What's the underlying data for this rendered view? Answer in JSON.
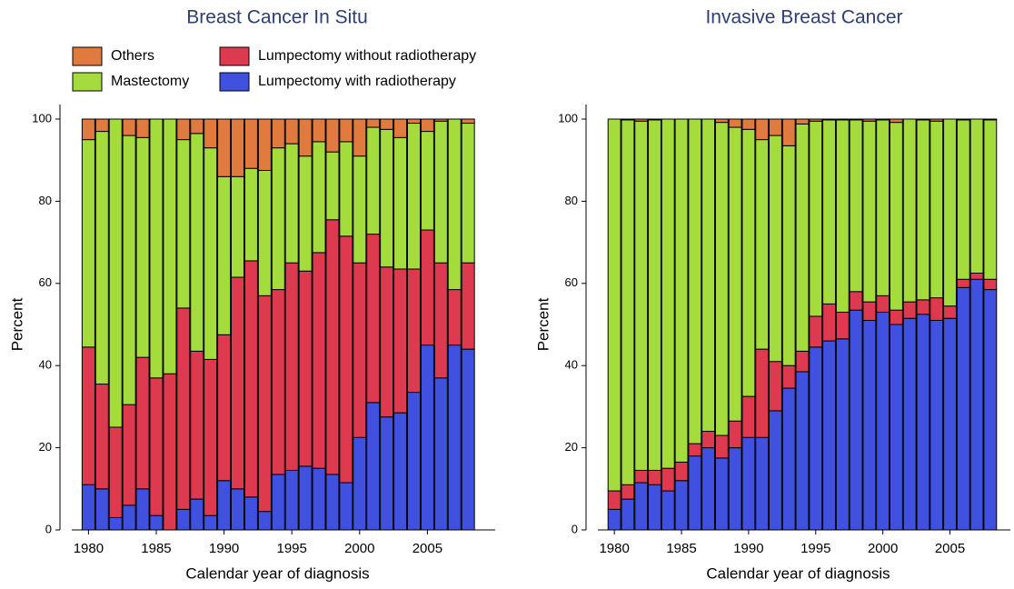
{
  "chart_data": [
    {
      "type": "stacked_bar",
      "title": "Breast Cancer In Situ",
      "x": [
        1980,
        1981,
        1982,
        1983,
        1984,
        1985,
        1986,
        1987,
        1988,
        1989,
        1990,
        1991,
        1992,
        1993,
        1994,
        1995,
        1996,
        1997,
        1998,
        1999,
        2000,
        2001,
        2002,
        2003,
        2004,
        2005,
        2006,
        2007,
        2008
      ],
      "xlabel": "Calendar year of diagnosis",
      "ylabel": "Percent",
      "xlim": [
        1978.5,
        2010
      ],
      "xticks": [
        1980,
        1985,
        1990,
        1995,
        2000,
        2005
      ],
      "ylim": [
        0,
        100
      ],
      "yticks": [
        0,
        20,
        40,
        60,
        80,
        100
      ],
      "legend": true,
      "series": [
        {
          "name": "Lumpectomy with radiotherapy",
          "color": "#3f51de",
          "values": [
            11,
            10,
            3,
            6,
            10,
            3.5,
            0,
            5,
            7.5,
            3.5,
            12,
            10,
            8,
            4.5,
            13.5,
            14.5,
            15.5,
            15,
            13.5,
            11.5,
            22.5,
            31,
            27.5,
            28.5,
            33.5,
            45,
            37,
            45,
            44
          ]
        },
        {
          "name": "Lumpectomy without radiotherapy",
          "color": "#de3a4f",
          "values": [
            33.5,
            25.5,
            22,
            24.5,
            32,
            33.5,
            38,
            49,
            36,
            38,
            35.5,
            51.5,
            57.5,
            52.5,
            45,
            50.5,
            47.5,
            52.5,
            62,
            60,
            42.5,
            41,
            36.5,
            35,
            30,
            28,
            28,
            13.5,
            21
          ]
        },
        {
          "name": "Mastectomy",
          "color": "#a3dc3c",
          "values": [
            50.5,
            61.5,
            75,
            65.5,
            53.5,
            63,
            62,
            41,
            53,
            51.5,
            38.5,
            24.5,
            22.5,
            30.5,
            34.5,
            29,
            28,
            27,
            16.5,
            23,
            26,
            26,
            33.5,
            32,
            35.5,
            24,
            34.5,
            41.5,
            34
          ]
        },
        {
          "name": "Others",
          "color": "#e07a3e",
          "values": [
            5,
            3,
            0,
            4,
            4.5,
            0,
            0,
            5,
            3.5,
            7,
            14,
            14,
            12,
            12.5,
            7,
            6,
            9,
            5.5,
            8,
            5.5,
            9,
            2,
            2.5,
            4.5,
            1,
            3,
            0.5,
            0,
            1
          ]
        }
      ]
    },
    {
      "type": "stacked_bar",
      "title": "Invasive Breast Cancer",
      "x": [
        1980,
        1981,
        1982,
        1983,
        1984,
        1985,
        1986,
        1987,
        1988,
        1989,
        1990,
        1991,
        1992,
        1993,
        1994,
        1995,
        1996,
        1997,
        1998,
        1999,
        2000,
        2001,
        2002,
        2003,
        2004,
        2005,
        2006,
        2007,
        2008
      ],
      "xlabel": "Calendar year of diagnosis",
      "ylabel": "Percent",
      "xlim": [
        1978.5,
        2009.5
      ],
      "xticks": [
        1980,
        1985,
        1990,
        1995,
        2000,
        2005
      ],
      "ylim": [
        0,
        100
      ],
      "yticks": [
        0,
        20,
        40,
        60,
        80,
        100
      ],
      "legend": false,
      "series": [
        {
          "color": "#3f51de",
          "values": [
            5,
            7.5,
            11.5,
            11,
            9.5,
            12,
            18,
            20,
            17.5,
            20,
            22.5,
            22.5,
            29,
            34.5,
            38.5,
            44.5,
            46,
            46.5,
            53.5,
            51,
            53,
            50,
            51.5,
            52.5,
            51,
            51.5,
            59,
            61,
            58.5
          ]
        },
        {
          "color": "#de3a4f",
          "values": [
            4.5,
            3.5,
            3,
            3.5,
            5.5,
            4.5,
            3,
            4,
            5.5,
            6.5,
            10,
            21.5,
            12,
            5.5,
            5,
            7.5,
            9,
            6.5,
            4.5,
            4.5,
            4,
            3.5,
            4,
            3.5,
            5.5,
            3,
            2,
            1.5,
            2.5
          ]
        },
        {
          "color": "#a3dc3c",
          "values": [
            90.5,
            88.8,
            85,
            85.3,
            85,
            83.5,
            79,
            76,
            76.2,
            71.5,
            65,
            51,
            55,
            53.5,
            55.3,
            47.5,
            44.8,
            46.8,
            41.8,
            44,
            42.8,
            45.7,
            44.5,
            43.8,
            43,
            45.5,
            38.8,
            37.5,
            38.8
          ]
        },
        {
          "color": "#e07a3e",
          "values": [
            0,
            0.2,
            0.5,
            0.2,
            0,
            0,
            0,
            0,
            0.8,
            2,
            2.5,
            5,
            4,
            6.5,
            1.2,
            0.5,
            0.2,
            0.2,
            0.2,
            0.5,
            0.2,
            0.8,
            0,
            0.2,
            0.5,
            0,
            0.2,
            0,
            0.2
          ]
        }
      ]
    }
  ]
}
